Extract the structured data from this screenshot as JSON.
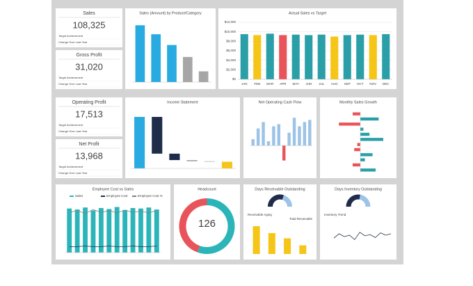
{
  "kpis": [
    {
      "title": "Sales",
      "value": "108,325",
      "rows": [
        "Target Achievement",
        "Change Over Last Year"
      ]
    },
    {
      "title": "Gross Profit",
      "value": "31,020",
      "rows": [
        "Target Achievement",
        "Change Over Last Year"
      ]
    },
    {
      "title": "Operating Profit",
      "value": "17,513",
      "rows": [
        "Target Achievement",
        "Change Over Last Year"
      ]
    },
    {
      "title": "Net Profit",
      "value": "13,968",
      "rows": [
        "Target Achievement",
        "Change Over Last Year"
      ]
    }
  ],
  "chart_data": [
    {
      "type": "bar",
      "title": "Sales (Amount) by Product/Category",
      "values": [
        95,
        80,
        62,
        42,
        18
      ],
      "colors": [
        "#29abe2",
        "#29abe2",
        "#29abe2",
        "#a6a6a6",
        "#a6a6a6"
      ],
      "ylim": [
        0,
        100
      ]
    },
    {
      "type": "bar",
      "title": "Actual Sales vs Target",
      "categories": [
        "JAN",
        "FEB",
        "MAR",
        "APR",
        "MAY",
        "JUN",
        "JUL",
        "AUG",
        "SEP",
        "OCT",
        "NOV",
        "DEC"
      ],
      "values": [
        9500,
        9300,
        9600,
        9300,
        9400,
        9300,
        9400,
        9000,
        9300,
        9400,
        9300,
        9500
      ],
      "colors": [
        "#2a9fa8",
        "#f5c518",
        "#2a9fa8",
        "#e8545a",
        "#2a9fa8",
        "#2a9fa8",
        "#2a9fa8",
        "#f5c518",
        "#2a9fa8",
        "#2a9fa8",
        "#f5c518",
        "#2a9fa8"
      ],
      "ylim": [
        0,
        12000
      ],
      "yticks": [
        {
          "value": 0,
          "label": "$0"
        },
        {
          "value": 2000,
          "label": "$2,000"
        },
        {
          "value": 4000,
          "label": "$4,000"
        },
        {
          "value": 6000,
          "label": "$6,000"
        },
        {
          "value": 8000,
          "label": "$8,000"
        },
        {
          "value": 10000,
          "label": "$10,000"
        },
        {
          "value": 12000,
          "label": "$12,000"
        }
      ],
      "grid": true
    },
    {
      "type": "waterfall",
      "title": "Income Statement",
      "values": [
        108.3,
        -77.3,
        -13.5,
        -2.5,
        -1,
        14
      ],
      "colors": [
        "#29abe2",
        "#1f2d4a",
        "#1f2d4a",
        "#a6a6a6",
        "#a6a6a6",
        "#f5c518"
      ],
      "last_is_total": true,
      "ylim": [
        0,
        120
      ]
    },
    {
      "type": "bar",
      "title": "Net Operating Cash Flow",
      "values": [
        15,
        40,
        55,
        10,
        45,
        50,
        -35,
        30,
        65,
        45,
        55,
        60
      ],
      "color": "#9dc3e6",
      "negative_color": "#e8545a",
      "ylim": [
        -60,
        80
      ]
    },
    {
      "type": "hbar",
      "title": "Monthly Sales Growth",
      "values": [
        -5,
        12,
        -14,
        2,
        6,
        15,
        -2,
        -4,
        8,
        3,
        -5,
        10
      ],
      "color": "#2a9fa8",
      "negative_color": "#e8545a",
      "xlim": [
        -20,
        20
      ]
    },
    {
      "type": "combo",
      "title": "Employee Cost vs Sales",
      "ylim": [
        0,
        100
      ],
      "series": [
        {
          "name": "Sales",
          "color": "#2bb5b8",
          "kind": "bar",
          "values": [
            88,
            86,
            90,
            84,
            89,
            87,
            91,
            85,
            89,
            88,
            90,
            86
          ]
        },
        {
          "name": "Employee Cost",
          "color": "#1f2d4a",
          "kind": "line",
          "values": [
            12,
            12,
            13,
            12,
            12,
            13,
            12,
            12,
            13,
            12,
            12,
            13
          ]
        },
        {
          "name": "Employee Cost %",
          "color": "#7f7f7f",
          "kind": "line",
          "values": [
            80,
            84,
            78,
            86,
            80,
            84,
            79,
            85,
            80,
            83,
            79,
            84
          ]
        }
      ]
    },
    {
      "type": "donut",
      "title": "Headcount",
      "total": 126,
      "values": [
        70,
        56
      ],
      "colors": [
        "#2bb5b8",
        "#e8545a"
      ]
    },
    {
      "type": "gauge_bar",
      "title": "Days Receivable Outstanding",
      "subtitle": "Receivable Aging",
      "note": "Total Receivable",
      "gauge": {
        "value": 60,
        "max": 100
      },
      "gauge_colors": [
        "#1f2d4a",
        "#9dc3e6"
      ],
      "values": [
        80,
        60,
        45,
        25
      ],
      "color": "#f5c518",
      "ylim": [
        0,
        100
      ]
    },
    {
      "type": "gauge_line",
      "title": "Days Inventory Outstanding",
      "subtitle": "Inventory Trend",
      "gauge": {
        "value": 55,
        "max": 100
      },
      "gauge_colors": [
        "#1f2d4a",
        "#9dc3e6"
      ],
      "values": [
        40,
        55,
        45,
        50,
        35,
        60,
        48,
        52,
        42,
        58,
        50,
        55
      ],
      "color": "#1f2d4a",
      "ylim": [
        0,
        100
      ]
    }
  ]
}
